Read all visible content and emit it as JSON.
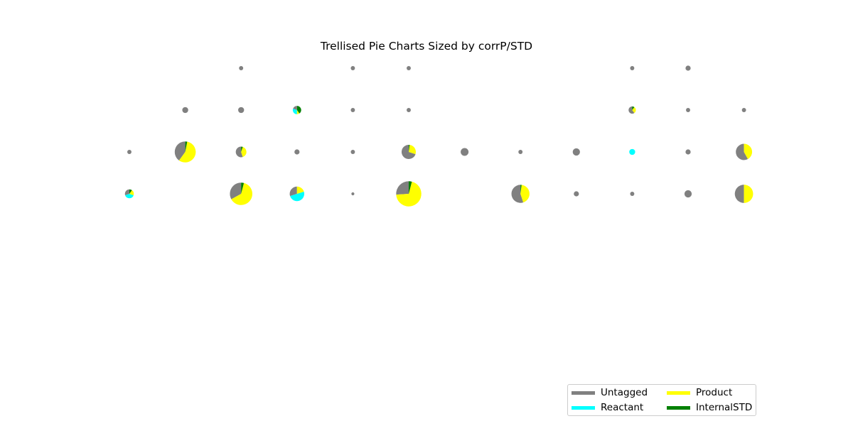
{
  "chart_data": {
    "type": "pie",
    "title": "Trellised Pie Charts Sized by corrP/STD",
    "categories": [
      "Untagged",
      "Reactant",
      "Product",
      "InternalSTD"
    ],
    "colors": {
      "Untagged": "#808080",
      "Reactant": "#00ffff",
      "Product": "#ffff00",
      "InternalSTD": "#008000"
    },
    "grid": {
      "rows": 4,
      "cols": 12
    },
    "legend": {
      "placement": "lower-right",
      "ncol": 2
    },
    "pies": [
      {
        "row": 0,
        "col": 2,
        "size": 0.02,
        "shares": [
          1,
          0,
          0,
          0
        ]
      },
      {
        "row": 0,
        "col": 4,
        "size": 0.02,
        "shares": [
          1,
          0,
          0,
          0
        ]
      },
      {
        "row": 0,
        "col": 5,
        "size": 0.02,
        "shares": [
          1,
          0,
          0,
          0
        ]
      },
      {
        "row": 0,
        "col": 9,
        "size": 0.02,
        "shares": [
          1,
          0,
          0,
          0
        ]
      },
      {
        "row": 0,
        "col": 10,
        "size": 0.03,
        "shares": [
          1,
          0,
          0,
          0
        ]
      },
      {
        "row": 1,
        "col": 1,
        "size": 0.04,
        "shares": [
          1,
          0,
          0,
          0
        ]
      },
      {
        "row": 1,
        "col": 2,
        "size": 0.04,
        "shares": [
          1,
          0,
          0,
          0
        ]
      },
      {
        "row": 1,
        "col": 3,
        "size": 0.08,
        "shares": [
          0.2,
          0.3,
          0.1,
          0.4
        ]
      },
      {
        "row": 1,
        "col": 4,
        "size": 0.02,
        "shares": [
          1,
          0,
          0,
          0
        ]
      },
      {
        "row": 1,
        "col": 5,
        "size": 0.02,
        "shares": [
          1,
          0,
          0,
          0
        ]
      },
      {
        "row": 1,
        "col": 9,
        "size": 0.06,
        "shares": [
          0.6,
          0,
          0.3,
          0.1
        ]
      },
      {
        "row": 1,
        "col": 10,
        "size": 0.02,
        "shares": [
          1,
          0,
          0,
          0
        ]
      },
      {
        "row": 1,
        "col": 11,
        "size": 0.02,
        "shares": [
          1,
          0,
          0,
          0
        ]
      },
      {
        "row": 2,
        "col": 0,
        "size": 0.02,
        "shares": [
          1,
          0,
          0,
          0
        ]
      },
      {
        "row": 2,
        "col": 1,
        "size": 0.5,
        "shares": [
          0.4,
          0,
          0.57,
          0.03
        ]
      },
      {
        "row": 2,
        "col": 2,
        "size": 0.13,
        "shares": [
          0.55,
          0,
          0.4,
          0.05
        ]
      },
      {
        "row": 2,
        "col": 3,
        "size": 0.03,
        "shares": [
          1,
          0,
          0,
          0
        ]
      },
      {
        "row": 2,
        "col": 4,
        "size": 0.02,
        "shares": [
          1,
          0,
          0,
          0
        ]
      },
      {
        "row": 2,
        "col": 5,
        "size": 0.23,
        "shares": [
          0.7,
          0,
          0.28,
          0.02
        ]
      },
      {
        "row": 2,
        "col": 6,
        "size": 0.07,
        "shares": [
          1,
          0,
          0,
          0
        ]
      },
      {
        "row": 2,
        "col": 7,
        "size": 0.02,
        "shares": [
          1,
          0,
          0,
          0
        ]
      },
      {
        "row": 2,
        "col": 8,
        "size": 0.06,
        "shares": [
          1,
          0,
          0,
          0
        ]
      },
      {
        "row": 2,
        "col": 9,
        "size": 0.04,
        "shares": [
          0,
          1,
          0,
          0
        ]
      },
      {
        "row": 2,
        "col": 10,
        "size": 0.03,
        "shares": [
          1,
          0,
          0,
          0
        ]
      },
      {
        "row": 2,
        "col": 11,
        "size": 0.3,
        "shares": [
          0.58,
          0,
          0.42,
          0
        ]
      },
      {
        "row": 3,
        "col": 0,
        "size": 0.09,
        "shares": [
          0.3,
          0.4,
          0.2,
          0.1
        ]
      },
      {
        "row": 3,
        "col": 2,
        "size": 0.57,
        "shares": [
          0.33,
          0,
          0.63,
          0.04
        ]
      },
      {
        "row": 3,
        "col": 3,
        "size": 0.24,
        "shares": [
          0.3,
          0.5,
          0.2,
          0
        ]
      },
      {
        "row": 3,
        "col": 4,
        "size": 0.01,
        "shares": [
          1,
          0,
          0,
          0
        ]
      },
      {
        "row": 3,
        "col": 5,
        "size": 0.72,
        "shares": [
          0.26,
          0,
          0.7,
          0.04
        ]
      },
      {
        "row": 3,
        "col": 7,
        "size": 0.37,
        "shares": [
          0.55,
          0,
          0.43,
          0.02
        ]
      },
      {
        "row": 3,
        "col": 8,
        "size": 0.03,
        "shares": [
          1,
          0,
          0,
          0
        ]
      },
      {
        "row": 3,
        "col": 9,
        "size": 0.02,
        "shares": [
          1,
          0,
          0,
          0
        ]
      },
      {
        "row": 3,
        "col": 10,
        "size": 0.06,
        "shares": [
          1,
          0,
          0,
          0
        ]
      },
      {
        "row": 3,
        "col": 11,
        "size": 0.38,
        "shares": [
          0.5,
          0,
          0.5,
          0
        ]
      }
    ]
  }
}
